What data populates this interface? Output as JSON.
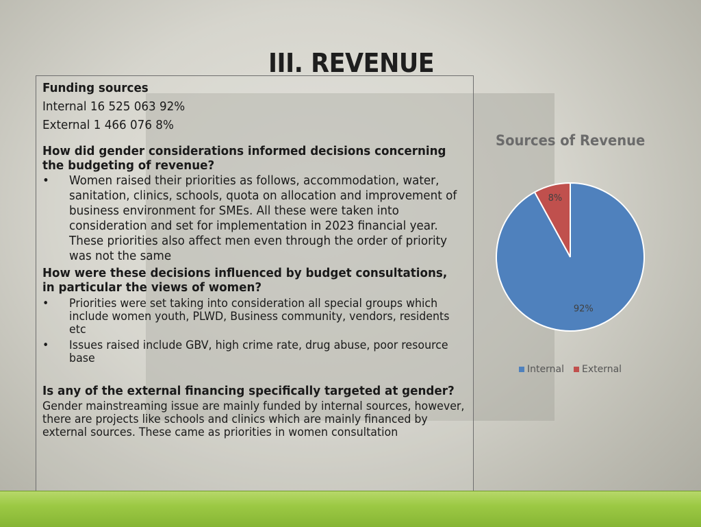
{
  "slide": {
    "title": "III. REVENUE"
  },
  "funding": {
    "heading": "Funding sources",
    "internal_line": "Internal 16 525 063  92%",
    "external_line": "External 1 466 076    8%"
  },
  "q1": {
    "question": "How did  gender considerations informed decisions concerning the budgeting of revenue?",
    "bullet_char": "•",
    "answer": "Women raised their priorities as follows, accommodation, water, sanitation, clinics, schools, quota on allocation and improvement of business environment for SMEs. All these were taken into consideration and set for implementation in 2023 financial year. These priorities also affect men even through the order of priority was not the same"
  },
  "q2": {
    "question": "How were these decisions influenced by budget consultations, in particular the views of women?",
    "bullet_char": "•",
    "bullets": [
      "Priorities were set taking into consideration all special groups which include women youth, PLWD, Business community, vendors, residents etc",
      "Issues raised include GBV, high crime rate, drug abuse, poor resource base"
    ]
  },
  "q3": {
    "question": "Is any of the external financing specifically targeted at gender?",
    "answer": "Gender mainstreaming issue are mainly funded by internal sources, however, there are projects like schools and clinics which are mainly financed by external sources. These came as priorities in women consultation"
  },
  "chart_data": {
    "type": "pie",
    "title": "Sources of Revenue",
    "categories": [
      "Internal",
      "External"
    ],
    "values": [
      92,
      8
    ],
    "data_labels": [
      "92%",
      "8%"
    ],
    "colors": [
      "#4f81bd",
      "#c0504d"
    ],
    "legend_position": "bottom"
  },
  "theme": {
    "accent_bar_color": "#9cc944"
  }
}
